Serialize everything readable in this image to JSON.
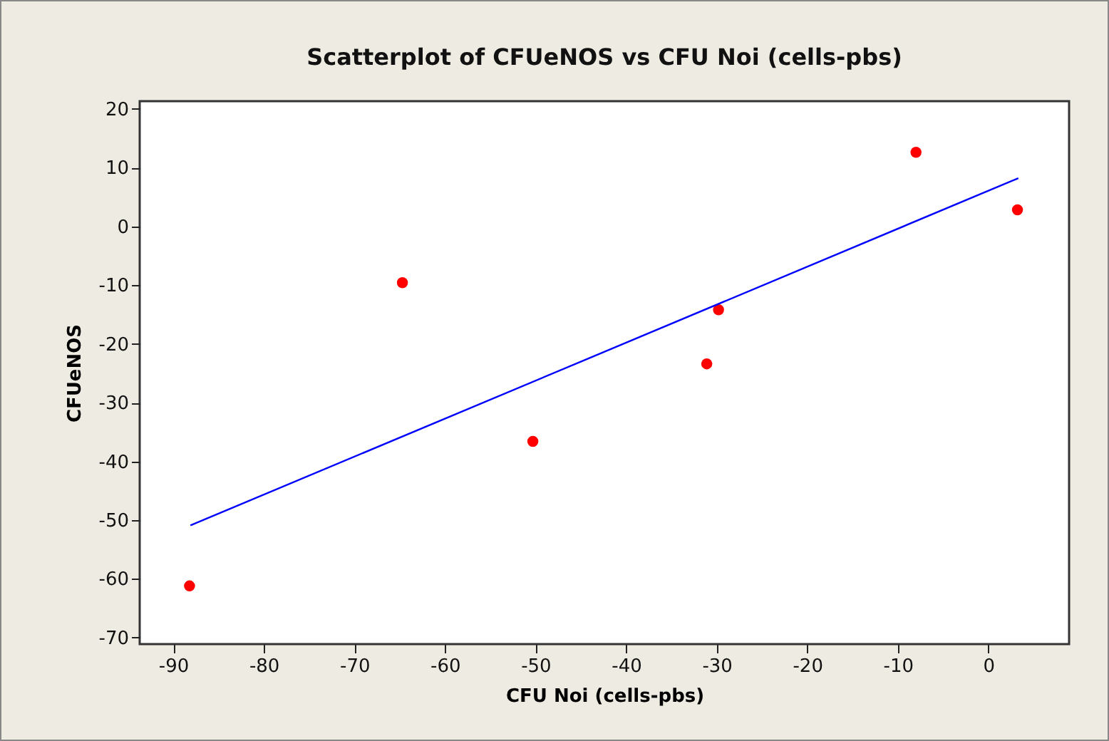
{
  "chart_data": {
    "type": "scatter",
    "title": "Scatterplot of CFUeNOS vs CFU Noi (cells-pbs)",
    "xlabel": "CFU Noi (cells-pbs)",
    "ylabel": "CFUeNOS",
    "series": [
      {
        "color": "#ff0000",
        "marker": "circle",
        "x": [
          -88.2,
          -64.7,
          -50.3,
          -31.1,
          -29.8,
          -8.0,
          3.2
        ],
        "values": [
          -61.2,
          -9.6,
          -36.6,
          -23.4,
          -14.2,
          12.6,
          2.8
        ]
      },
      {
        "type": "line",
        "marker": "none",
        "color": "#0000ff",
        "x": [
          -88.1,
          3.3
        ],
        "values": [
          -50.9,
          8.2
        ]
      }
    ],
    "xlim": [
      -93.7,
      8.9
    ],
    "xticks": [
      -90,
      -80,
      -70,
      -60,
      -50,
      -40,
      -30,
      -20,
      -10,
      0
    ],
    "ylim": [
      -71.1,
      21.3
    ],
    "yticks": [
      -70,
      -60,
      -50,
      -40,
      -30,
      -20,
      -10,
      0,
      10,
      20
    ],
    "grid": false
  }
}
